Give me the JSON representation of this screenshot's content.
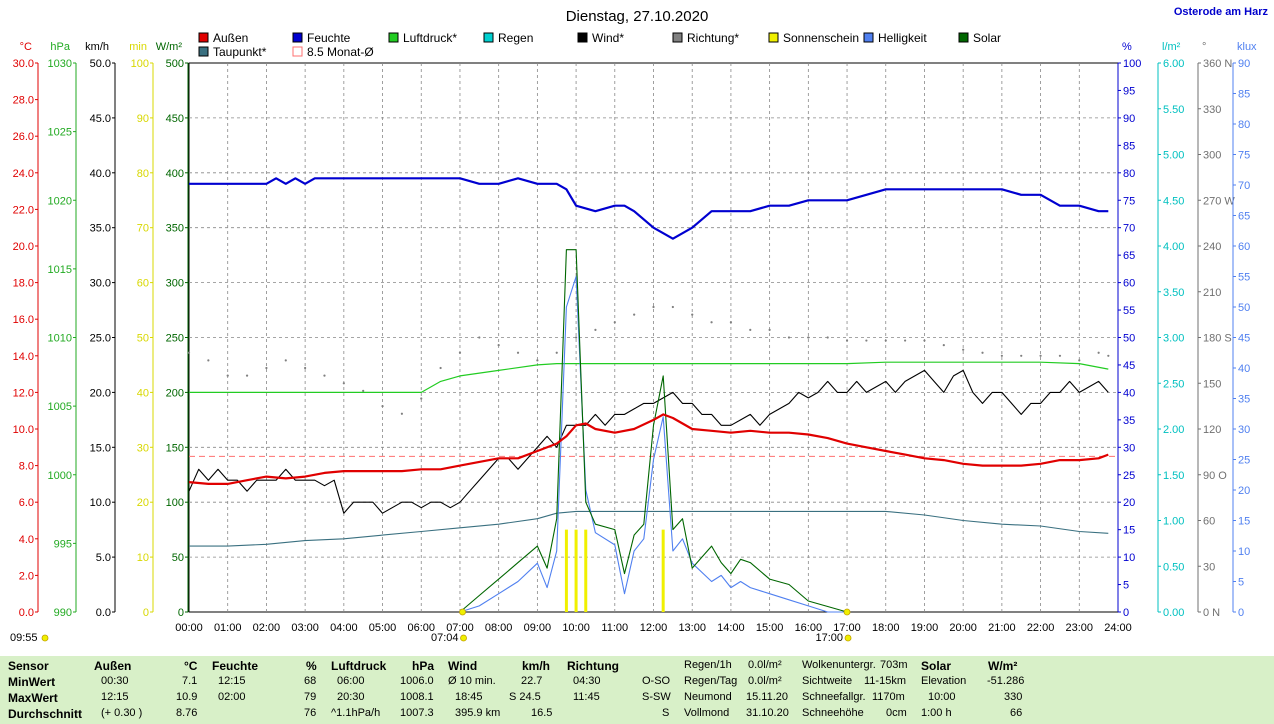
{
  "title": "Dienstag, 27.10.2020",
  "station": "Osterode am Harz",
  "colors": {
    "aussen": "#e00000",
    "feuchte": "#0000d0",
    "luftdruck": "#22cc22",
    "regen": "#00d0d0",
    "wind": "#000000",
    "richtung": "#808080",
    "sonne": "#f0f000",
    "helligkeit": "#5080f0",
    "solar": "#006600",
    "taupunkt": "#3a7080",
    "monat": "#ff7070"
  },
  "legend": [
    {
      "label": "Außen",
      "color": "#e00000"
    },
    {
      "label": "Feuchte",
      "color": "#0000d0"
    },
    {
      "label": "Luftdruck*",
      "color": "#22cc22"
    },
    {
      "label": "Regen",
      "color": "#00d0d0"
    },
    {
      "label": "Wind*",
      "color": "#000000"
    },
    {
      "label": "Richtung*",
      "color": "#808080"
    },
    {
      "label": "Sonnenschein",
      "color": "#f0f000"
    },
    {
      "label": "Helligkeit",
      "color": "#5080f0"
    },
    {
      "label": "Solar",
      "color": "#006600"
    },
    {
      "label": "Taupunkt*",
      "color": "#3a7080"
    },
    {
      "label": "8.5 Monat-Ø",
      "color": "#ff7070"
    }
  ],
  "left_axes": [
    {
      "unit": "°C",
      "color": "#e00000",
      "ticks": [
        "30.0",
        "28.0",
        "26.0",
        "24.0",
        "22.0",
        "20.0",
        "18.0",
        "16.0",
        "14.0",
        "12.0",
        "10.0",
        "8.0",
        "6.0",
        "4.0",
        "2.0",
        "0.0"
      ]
    },
    {
      "unit": "hPa",
      "color": "#22aa22",
      "ticks": [
        "1030",
        "1025",
        "1020",
        "1015",
        "1010",
        "1005",
        "1000",
        "995",
        "990"
      ]
    },
    {
      "unit": "km/h",
      "color": "#000000",
      "ticks": [
        "50.0",
        "45.0",
        "40.0",
        "35.0",
        "30.0",
        "25.0",
        "20.0",
        "15.0",
        "10.0",
        "5.0",
        "0.0"
      ]
    },
    {
      "unit": "min",
      "color": "#d8d800",
      "ticks": [
        "100",
        "90",
        "80",
        "70",
        "60",
        "50",
        "40",
        "30",
        "20",
        "10",
        "0"
      ]
    },
    {
      "unit": "W/m²",
      "color": "#006600",
      "ticks": [
        "500",
        "450",
        "400",
        "350",
        "300",
        "250",
        "200",
        "150",
        "100",
        "50",
        "0"
      ]
    }
  ],
  "right_axes": [
    {
      "unit": "%",
      "color": "#0000d0",
      "ticks": [
        "100",
        "95",
        "90",
        "85",
        "80",
        "75",
        "70",
        "65",
        "60",
        "55",
        "50",
        "45",
        "40",
        "35",
        "30",
        "25",
        "20",
        "15",
        "10",
        "5",
        "0"
      ]
    },
    {
      "unit": "l/m²",
      "color": "#00c0c0",
      "ticks": [
        "6.00",
        "5.50",
        "5.00",
        "4.50",
        "4.00",
        "3.50",
        "3.00",
        "2.50",
        "2.00",
        "1.50",
        "1.00",
        "0.50",
        "0.00"
      ]
    },
    {
      "unit": "°",
      "color": "#707070",
      "ticks": [
        "360 N",
        "330",
        "300",
        "270 W",
        "240",
        "210",
        "180 S",
        "150",
        "120",
        "90 O",
        "60",
        "30",
        "0 N"
      ]
    },
    {
      "unit": "klux",
      "color": "#5080f0",
      "ticks": [
        "90",
        "85",
        "80",
        "75",
        "70",
        "65",
        "60",
        "55",
        "50",
        "45",
        "40",
        "35",
        "30",
        "25",
        "20",
        "15",
        "10",
        "5",
        "0"
      ]
    }
  ],
  "time_ticks": [
    "00:00",
    "01:00",
    "02:00",
    "03:00",
    "04:00",
    "05:00",
    "06:00",
    "07:00",
    "08:00",
    "09:00",
    "10:00",
    "11:00",
    "12:00",
    "13:00",
    "14:00",
    "15:00",
    "16:00",
    "17:00",
    "18:00",
    "19:00",
    "20:00",
    "21:00",
    "22:00",
    "23:00",
    "24:00"
  ],
  "sunrise": "07:04",
  "sunset": "17:00",
  "now_time": "09:55",
  "chart_data": {
    "type": "line",
    "title": "Dienstag, 27.10.2020",
    "xlabel": "",
    "xlim": [
      0,
      24
    ],
    "series": [
      {
        "name": "Außen",
        "unit": "°C",
        "ylim": [
          0,
          30
        ],
        "x": [
          0,
          0.5,
          1,
          1.5,
          2,
          2.5,
          3,
          3.5,
          4,
          4.5,
          5,
          5.5,
          6,
          6.5,
          7,
          7.5,
          8,
          8.5,
          9,
          9.5,
          9.75,
          10,
          10.25,
          10.5,
          11,
          11.5,
          12,
          12.25,
          12.5,
          13,
          13.5,
          14,
          14.5,
          15,
          15.5,
          16,
          16.5,
          17,
          17.5,
          18,
          18.5,
          19,
          19.5,
          20,
          20.5,
          21,
          21.5,
          22,
          22.5,
          23,
          23.5,
          23.75
        ],
        "y": [
          7.1,
          7.0,
          7.0,
          7.2,
          7.4,
          7.3,
          7.4,
          7.6,
          7.7,
          7.7,
          7.7,
          7.7,
          7.8,
          7.8,
          8.0,
          8.2,
          8.4,
          8.4,
          8.8,
          9.2,
          9.6,
          10.2,
          10.3,
          10.0,
          9.8,
          10.0,
          10.5,
          10.8,
          10.6,
          10.0,
          9.9,
          9.8,
          9.9,
          9.8,
          9.8,
          9.7,
          9.5,
          9.2,
          9.0,
          8.8,
          8.6,
          8.4,
          8.3,
          8.1,
          8.0,
          8.0,
          8.0,
          8.1,
          8.3,
          8.3,
          8.4,
          8.6
        ]
      },
      {
        "name": "Feuchte",
        "unit": "%",
        "ylim": [
          0,
          100
        ],
        "x": [
          0,
          1,
          2,
          2.25,
          2.5,
          2.75,
          3,
          3.25,
          4,
          5,
          6,
          7,
          7.5,
          8,
          8.5,
          9,
          9.5,
          9.75,
          10,
          10.5,
          11,
          11.25,
          11.5,
          12,
          12.25,
          12.5,
          13,
          13.5,
          14,
          14.5,
          15,
          15.5,
          16,
          16.5,
          17,
          17.5,
          18,
          19,
          20,
          21,
          21.5,
          22,
          22.5,
          23,
          23.5,
          23.75
        ],
        "y": [
          78,
          78,
          78,
          79,
          78,
          79,
          78,
          79,
          79,
          79,
          79,
          79,
          78,
          78,
          79,
          78,
          78,
          77,
          74,
          73,
          74,
          74,
          73,
          70,
          69,
          68,
          70,
          73,
          73,
          73,
          74,
          74,
          75,
          75,
          75,
          76,
          77,
          77,
          77,
          77,
          76,
          76,
          74,
          74,
          73,
          73
        ]
      },
      {
        "name": "Luftdruck",
        "unit": "hPa",
        "ylim": [
          990,
          1030
        ],
        "x": [
          0,
          2,
          4,
          6,
          6.5,
          7,
          8,
          9,
          9.5,
          10,
          11,
          12,
          13,
          14,
          15,
          16,
          17,
          18,
          19,
          20,
          21,
          22,
          23,
          23.75
        ],
        "y": [
          1006.0,
          1006.0,
          1006.0,
          1006.0,
          1006.8,
          1007.2,
          1007.6,
          1008.0,
          1008.1,
          1008.1,
          1008.1,
          1008.1,
          1008.1,
          1008.1,
          1008.1,
          1008.1,
          1008.1,
          1008.2,
          1008.2,
          1008.2,
          1008.2,
          1008.2,
          1008.1,
          1007.7
        ]
      },
      {
        "name": "Wind",
        "unit": "km/h",
        "ylim": [
          0,
          50
        ],
        "x": [
          0,
          0.25,
          0.5,
          0.75,
          1,
          1.25,
          1.5,
          1.75,
          2,
          2.25,
          2.5,
          2.75,
          3,
          3.25,
          3.5,
          3.75,
          4,
          4.25,
          4.5,
          4.75,
          5,
          5.25,
          5.5,
          5.75,
          6,
          6.25,
          6.5,
          6.75,
          7,
          7.25,
          7.5,
          7.75,
          8,
          8.25,
          8.5,
          8.75,
          9,
          9.25,
          9.5,
          9.75,
          10,
          10.25,
          10.5,
          10.75,
          11,
          11.25,
          11.5,
          11.75,
          12,
          12.25,
          12.5,
          12.75,
          13,
          13.25,
          13.5,
          13.75,
          14,
          14.25,
          14.5,
          14.75,
          15,
          15.25,
          15.5,
          15.75,
          16,
          16.25,
          16.5,
          16.75,
          17,
          17.25,
          17.5,
          17.75,
          18,
          18.25,
          18.5,
          18.75,
          19,
          19.25,
          19.5,
          19.75,
          20,
          20.25,
          20.5,
          20.75,
          21,
          21.25,
          21.5,
          21.75,
          22,
          22.25,
          22.5,
          22.75,
          23,
          23.25,
          23.5,
          23.75
        ],
        "y": [
          11,
          13,
          12,
          13,
          12,
          12,
          11,
          12,
          12,
          12,
          13,
          12,
          12,
          12,
          11.5,
          12,
          9,
          10,
          10,
          10,
          9,
          9.5,
          10,
          10,
          9.5,
          10,
          10,
          9.5,
          10,
          11,
          12,
          13,
          14,
          14,
          13,
          14,
          15,
          16,
          15,
          17,
          17,
          17,
          18,
          17,
          18,
          18,
          18.5,
          19,
          19,
          19.5,
          20,
          19,
          19,
          18,
          18,
          17,
          17,
          17.5,
          18,
          17,
          18,
          18.5,
          19,
          20,
          19.5,
          20,
          21,
          20,
          20,
          21,
          20,
          20.5,
          21,
          20,
          21,
          21.5,
          22,
          21,
          20,
          21.5,
          22,
          20,
          19,
          20,
          20,
          19,
          18,
          19,
          19,
          20,
          20,
          21,
          20,
          20.5,
          21,
          20
        ]
      },
      {
        "name": "Richtung",
        "unit": "°",
        "ylim": [
          0,
          360
        ],
        "style": "dotted",
        "x": [
          0,
          0.5,
          1,
          1.5,
          2,
          2.5,
          3,
          3.5,
          4,
          4.5,
          5,
          5.5,
          6,
          6.5,
          7,
          7.5,
          8,
          8.5,
          9,
          9.5,
          10,
          10.5,
          11,
          11.5,
          12,
          12.5,
          13,
          13.5,
          14,
          14.5,
          15,
          15.5,
          16,
          16.5,
          17,
          17.5,
          18,
          18.5,
          19,
          19.5,
          20,
          20.5,
          21,
          21.5,
          22,
          22.5,
          23,
          23.5,
          23.75
        ],
        "y": [
          170,
          165,
          155,
          155,
          160,
          165,
          160,
          155,
          150,
          145,
          135,
          130,
          140,
          160,
          170,
          180,
          175,
          170,
          165,
          170,
          180,
          185,
          190,
          195,
          200,
          200,
          195,
          190,
          190,
          185,
          185,
          180,
          180,
          180,
          178,
          178,
          178,
          178,
          178,
          175,
          172,
          170,
          168,
          168,
          168,
          168,
          165,
          170,
          168
        ]
      },
      {
        "name": "Sonnenschein",
        "unit": "min",
        "ylim": [
          0,
          100
        ],
        "type": "bar",
        "x": [
          9.75,
          10,
          10.25,
          12.25
        ],
        "y": [
          15,
          15,
          15,
          15
        ]
      },
      {
        "name": "Helligkeit",
        "unit": "klux",
        "ylim": [
          0,
          90
        ],
        "x": [
          7,
          7.5,
          8,
          8.5,
          9,
          9.25,
          9.5,
          9.75,
          10,
          10.25,
          10.5,
          11,
          11.25,
          11.5,
          11.75,
          12,
          12.25,
          12.5,
          12.75,
          13,
          13.5,
          13.75,
          14,
          14.25,
          14.5,
          15,
          15.5,
          16,
          16.5,
          17
        ],
        "y": [
          0,
          1,
          3,
          5,
          8,
          4,
          10,
          50,
          55,
          20,
          13,
          11,
          3,
          10,
          12,
          25,
          32,
          10,
          12,
          8,
          5,
          6,
          4,
          5,
          4,
          3,
          2,
          1,
          0,
          0
        ]
      },
      {
        "name": "Solar",
        "unit": "W/m²",
        "ylim": [
          0,
          500
        ],
        "x": [
          7,
          7.5,
          8,
          8.5,
          9,
          9.25,
          9.5,
          9.75,
          10,
          10.25,
          10.5,
          11,
          11.25,
          11.5,
          11.75,
          12,
          12.25,
          12.5,
          12.75,
          13,
          13.5,
          13.75,
          14,
          14.25,
          14.5,
          15,
          15.5,
          16,
          16.5,
          17
        ],
        "y": [
          0,
          15,
          30,
          45,
          60,
          40,
          85,
          330,
          330,
          100,
          80,
          75,
          35,
          70,
          80,
          170,
          215,
          75,
          85,
          40,
          60,
          45,
          35,
          48,
          45,
          30,
          25,
          10,
          5,
          0
        ]
      },
      {
        "name": "Taupunkt",
        "unit": "°C",
        "ylim": [
          0,
          30
        ],
        "x": [
          0,
          1,
          2,
          3,
          4,
          5,
          6,
          7,
          8,
          9,
          9.5,
          10,
          10.5,
          11,
          12,
          13,
          14,
          15,
          16,
          17,
          18,
          19,
          20,
          21,
          22,
          23,
          23.75
        ],
        "y": [
          3.6,
          3.6,
          3.7,
          3.9,
          4.0,
          4.2,
          4.4,
          4.6,
          4.8,
          5.1,
          5.4,
          5.5,
          5.5,
          5.5,
          5.5,
          5.5,
          5.5,
          5.5,
          5.5,
          5.5,
          5.5,
          5.3,
          5.0,
          4.8,
          4.7,
          4.4,
          4.3
        ]
      },
      {
        "name": "8.5 Monat-Ø",
        "unit": "°C",
        "ylim": [
          0,
          30
        ],
        "style": "dashed",
        "x": [
          0,
          24
        ],
        "y": [
          8.5,
          8.5
        ]
      }
    ]
  },
  "footer": {
    "sensor": {
      "title": "Sensor",
      "rows": [
        "MinWert",
        "MaxWert",
        "Durchschnitt"
      ]
    },
    "aussen": {
      "title": "Außen",
      "unit": "°C",
      "rows": [
        [
          "00:30",
          "7.1"
        ],
        [
          "12:15",
          "10.9"
        ],
        [
          "(+ 0.30 )",
          "8.76"
        ]
      ]
    },
    "feuchte": {
      "title": "Feuchte",
      "unit": "%",
      "rows": [
        [
          "12:15",
          "68"
        ],
        [
          "02:00",
          "79"
        ],
        [
          "",
          "76"
        ]
      ]
    },
    "luftdruck": {
      "title": "Luftdruck",
      "unit": "hPa",
      "rows": [
        [
          "06:00",
          "1006.0"
        ],
        [
          "20:30",
          "1008.1"
        ],
        [
          "^1.1hPa/h",
          "1007.3"
        ]
      ]
    },
    "wind": {
      "title": "Wind",
      "unit": "km/h",
      "rows": [
        [
          "Ø 10 min.",
          "22.7"
        ],
        [
          "18:45",
          "S 24.5"
        ],
        [
          "395.9 km",
          "16.5"
        ]
      ]
    },
    "richtung": {
      "title": "Richtung",
      "rows": [
        [
          "04:30",
          "O-SO"
        ],
        [
          "11:45",
          "S-SW"
        ],
        [
          "",
          "S"
        ]
      ]
    },
    "regen": {
      "rows": [
        [
          "Regen/1h",
          "0.0l/m²"
        ],
        [
          "Regen/Tag",
          "0.0l/m²"
        ],
        [
          "Neumond",
          "15.11.20"
        ],
        [
          "Vollmond",
          "31.10.20"
        ]
      ]
    },
    "wolken": {
      "rows": [
        [
          "Wolkenuntergr.",
          "703m"
        ],
        [
          "Sichtweite",
          "11-15km"
        ],
        [
          "Schneefallgr.",
          "1170m"
        ],
        [
          "Schneehöhe",
          "0cm"
        ]
      ]
    },
    "solar": {
      "title": "Solar",
      "unit": "W/m²",
      "rows": [
        [
          "Elevation",
          "-51.286"
        ],
        [
          "10:00",
          "330"
        ],
        [
          "1:00 h",
          "66"
        ]
      ]
    }
  }
}
